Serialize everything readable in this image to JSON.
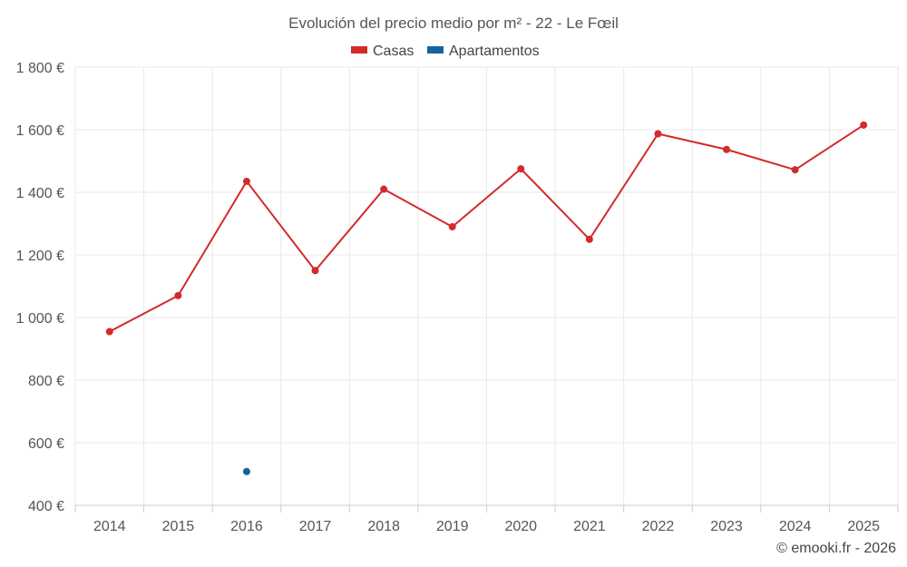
{
  "chart_data": {
    "type": "line",
    "title": "Evolución del precio medio por m² - 22 - Le Fœil",
    "categories": [
      "2014",
      "2015",
      "2016",
      "2017",
      "2018",
      "2019",
      "2020",
      "2021",
      "2022",
      "2023",
      "2024",
      "2025"
    ],
    "series": [
      {
        "name": "Casas",
        "color": "#d42a2a",
        "values": [
          955,
          1070,
          1435,
          1150,
          1410,
          1290,
          1475,
          1250,
          1587,
          1537,
          1472,
          1615
        ]
      },
      {
        "name": "Apartamentos",
        "color": "#1464a0",
        "values": [
          null,
          null,
          508,
          null,
          null,
          null,
          null,
          null,
          null,
          null,
          null,
          null
        ]
      }
    ],
    "ylim": [
      400,
      1800
    ],
    "yticks": [
      400,
      600,
      800,
      1000,
      1200,
      1400,
      1600,
      1800
    ],
    "ytick_labels": [
      "400 €",
      "600 €",
      "800 €",
      "1 000 €",
      "1 200 €",
      "1 400 €",
      "1 600 €",
      "1 800 €"
    ],
    "xlabel": "",
    "ylabel": "",
    "grid": true,
    "legend_position": "top-center"
  },
  "credit": "© emooki.fr - 2026"
}
